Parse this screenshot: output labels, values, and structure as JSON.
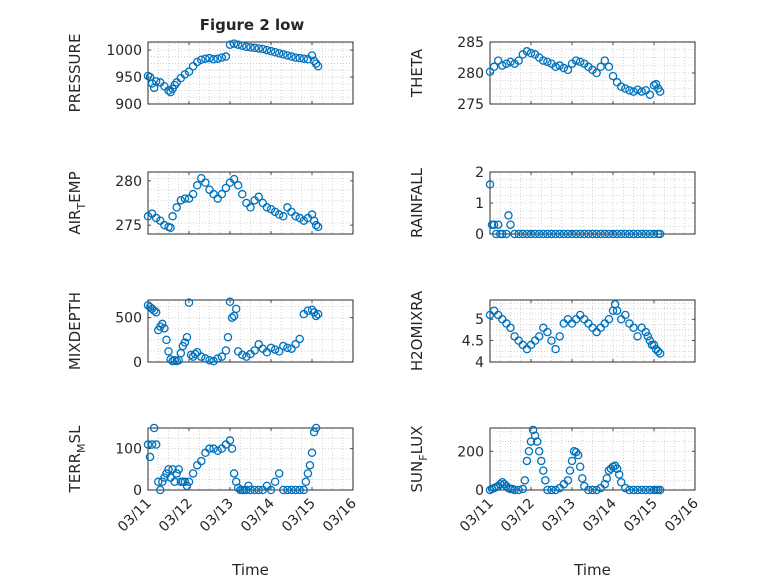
{
  "figure_title": "Figure 2 low",
  "chart_data": [
    {
      "type": "scatter",
      "title": "Figure 2 low",
      "ylabel": "PRESSURE",
      "xlabel": "",
      "ylim": [
        900,
        1015
      ],
      "yticks": [
        900,
        950,
        1000
      ],
      "xlim": [
        0,
        5
      ],
      "xticks": [
        0,
        1,
        2,
        3,
        4,
        5
      ],
      "xticklabels": [],
      "grid": true,
      "x": [
        0.0,
        0.05,
        0.1,
        0.15,
        0.2,
        0.3,
        0.4,
        0.5,
        0.55,
        0.6,
        0.65,
        0.7,
        0.8,
        0.9,
        1.0,
        1.1,
        1.2,
        1.3,
        1.4,
        1.5,
        1.6,
        1.7,
        1.8,
        1.9,
        2.0,
        2.1,
        2.2,
        2.3,
        2.4,
        2.5,
        2.6,
        2.7,
        2.8,
        2.9,
        3.0,
        3.1,
        3.2,
        3.3,
        3.4,
        3.5,
        3.6,
        3.7,
        3.8,
        3.9,
        4.0,
        4.05,
        4.1,
        4.15
      ],
      "y": [
        952,
        950,
        938,
        930,
        942,
        940,
        933,
        925,
        922,
        928,
        935,
        940,
        948,
        955,
        960,
        970,
        978,
        982,
        984,
        985,
        983,
        984,
        986,
        988,
        1010,
        1012,
        1010,
        1008,
        1006,
        1005,
        1004,
        1003,
        1002,
        1000,
        998,
        996,
        994,
        992,
        990,
        988,
        986,
        985,
        984,
        983,
        990,
        980,
        975,
        970
      ]
    },
    {
      "type": "scatter",
      "ylabel": "THETA",
      "xlabel": "",
      "ylim": [
        275,
        285
      ],
      "yticks": [
        275,
        280,
        285
      ],
      "xlim": [
        0,
        5
      ],
      "xticks": [
        0,
        1,
        2,
        3,
        4,
        5
      ],
      "xticklabels": [],
      "grid": true,
      "x": [
        0.0,
        0.1,
        0.2,
        0.3,
        0.4,
        0.5,
        0.6,
        0.7,
        0.8,
        0.9,
        1.0,
        1.1,
        1.2,
        1.3,
        1.4,
        1.5,
        1.6,
        1.7,
        1.8,
        1.9,
        2.0,
        2.1,
        2.2,
        2.3,
        2.4,
        2.5,
        2.6,
        2.7,
        2.8,
        2.9,
        3.0,
        3.1,
        3.2,
        3.3,
        3.4,
        3.5,
        3.6,
        3.7,
        3.8,
        3.9,
        4.0,
        4.05,
        4.1,
        4.15
      ],
      "y": [
        280.2,
        281.0,
        282.0,
        281.2,
        281.5,
        281.8,
        281.5,
        282.0,
        283.0,
        283.5,
        283.2,
        283.0,
        282.5,
        282.0,
        281.8,
        281.5,
        281.0,
        281.2,
        280.8,
        280.5,
        281.5,
        282.0,
        281.8,
        281.5,
        281.0,
        280.5,
        280.0,
        281.0,
        282.0,
        281.0,
        279.5,
        278.5,
        277.8,
        277.5,
        277.2,
        277.0,
        277.3,
        277.0,
        277.2,
        276.5,
        278.0,
        278.2,
        277.5,
        277.0
      ]
    },
    {
      "type": "scatter",
      "ylabel": "AIR_TEMP",
      "ylabel_main": "AIR",
      "ylabel_sub": "T",
      "ylabel_rest": "EMP",
      "xlabel": "",
      "ylim": [
        274,
        281
      ],
      "yticks": [
        275,
        280
      ],
      "xlim": [
        0,
        5
      ],
      "xticks": [
        0,
        1,
        2,
        3,
        4,
        5
      ],
      "xticklabels": [],
      "grid": true,
      "x": [
        0.0,
        0.1,
        0.2,
        0.3,
        0.4,
        0.5,
        0.55,
        0.6,
        0.7,
        0.8,
        0.9,
        1.0,
        1.1,
        1.2,
        1.3,
        1.4,
        1.5,
        1.6,
        1.7,
        1.8,
        1.9,
        2.0,
        2.1,
        2.2,
        2.3,
        2.4,
        2.5,
        2.6,
        2.7,
        2.8,
        2.9,
        3.0,
        3.1,
        3.2,
        3.3,
        3.4,
        3.5,
        3.6,
        3.7,
        3.8,
        3.9,
        4.0,
        4.05,
        4.1,
        4.15
      ],
      "y": [
        276.0,
        276.3,
        275.8,
        275.5,
        275.0,
        274.8,
        274.7,
        276.0,
        277.0,
        277.8,
        278.0,
        278.0,
        278.5,
        279.5,
        280.3,
        279.8,
        279.0,
        278.5,
        278.0,
        278.5,
        279.2,
        279.8,
        280.2,
        279.5,
        278.5,
        277.5,
        277.0,
        277.8,
        278.2,
        277.5,
        277.0,
        276.8,
        276.5,
        276.2,
        276.0,
        277.0,
        276.5,
        276.0,
        275.8,
        275.5,
        275.8,
        276.2,
        275.5,
        275.0,
        274.8
      ]
    },
    {
      "type": "scatter",
      "ylabel": "RAINFALL",
      "xlabel": "",
      "ylim": [
        0,
        2
      ],
      "yticks": [
        0,
        1,
        2
      ],
      "xlim": [
        0,
        5
      ],
      "xticks": [
        0,
        1,
        2,
        3,
        4,
        5
      ],
      "xticklabels": [],
      "grid": true,
      "x": [
        0.0,
        0.05,
        0.1,
        0.15,
        0.2,
        0.25,
        0.3,
        0.4,
        0.45,
        0.5,
        0.6,
        0.7,
        0.8,
        0.9,
        1.0,
        1.1,
        1.2,
        1.3,
        1.4,
        1.5,
        1.6,
        1.7,
        1.8,
        1.9,
        2.0,
        2.1,
        2.2,
        2.3,
        2.4,
        2.5,
        2.6,
        2.7,
        2.8,
        2.9,
        3.0,
        3.1,
        3.2,
        3.3,
        3.4,
        3.5,
        3.6,
        3.7,
        3.8,
        3.9,
        4.0,
        4.1,
        4.15
      ],
      "y": [
        1.6,
        0.3,
        0.3,
        0.0,
        0.3,
        0.0,
        0.0,
        0.0,
        0.6,
        0.3,
        0.0,
        0.0,
        0.0,
        0.0,
        0.0,
        0.0,
        0.0,
        0.0,
        0.0,
        0.0,
        0.0,
        0.0,
        0.0,
        0.0,
        0.0,
        0.0,
        0.0,
        0.0,
        0.0,
        0.0,
        0.0,
        0.0,
        0.0,
        0.0,
        0.0,
        0.0,
        0.0,
        0.0,
        0.0,
        0.0,
        0.0,
        0.0,
        0.0,
        0.0,
        0.0,
        0.0,
        0.0
      ]
    },
    {
      "type": "scatter",
      "ylabel": "MIXDEPTH",
      "xlabel": "",
      "ylim": [
        0,
        700
      ],
      "yticks": [
        0,
        500
      ],
      "xlim": [
        0,
        5
      ],
      "xticks": [
        0,
        1,
        2,
        3,
        4,
        5
      ],
      "xticklabels": [],
      "grid": true,
      "x": [
        0.0,
        0.05,
        0.1,
        0.15,
        0.2,
        0.25,
        0.3,
        0.35,
        0.4,
        0.45,
        0.5,
        0.55,
        0.6,
        0.65,
        0.7,
        0.75,
        0.8,
        0.85,
        0.9,
        0.95,
        1.0,
        1.05,
        1.1,
        1.15,
        1.2,
        1.3,
        1.4,
        1.5,
        1.6,
        1.7,
        1.8,
        1.9,
        1.95,
        2.0,
        2.05,
        2.1,
        2.15,
        2.2,
        2.3,
        2.4,
        2.5,
        2.6,
        2.7,
        2.8,
        2.9,
        3.0,
        3.1,
        3.2,
        3.3,
        3.4,
        3.5,
        3.6,
        3.7,
        3.8,
        3.9,
        4.0,
        4.05,
        4.1,
        4.15
      ],
      "y": [
        640,
        620,
        600,
        580,
        560,
        360,
        400,
        430,
        380,
        250,
        120,
        30,
        10,
        20,
        10,
        20,
        100,
        180,
        220,
        280,
        670,
        80,
        60,
        90,
        110,
        60,
        40,
        20,
        10,
        40,
        60,
        130,
        280,
        680,
        500,
        520,
        600,
        120,
        80,
        60,
        90,
        130,
        200,
        150,
        110,
        160,
        140,
        120,
        180,
        160,
        150,
        200,
        260,
        540,
        580,
        590,
        560,
        520,
        540
      ]
    },
    {
      "type": "scatter",
      "ylabel": "H2OMIXRA",
      "xlabel": "",
      "ylim": [
        4,
        5.45
      ],
      "yticks": [
        4,
        4.5,
        5
      ],
      "xlim": [
        0,
        5
      ],
      "xticks": [
        0,
        1,
        2,
        3,
        4,
        5
      ],
      "xticklabels": [],
      "grid": true,
      "x": [
        0.0,
        0.1,
        0.2,
        0.3,
        0.4,
        0.5,
        0.6,
        0.7,
        0.8,
        0.9,
        1.0,
        1.1,
        1.2,
        1.3,
        1.4,
        1.5,
        1.6,
        1.7,
        1.8,
        1.9,
        2.0,
        2.1,
        2.2,
        2.3,
        2.4,
        2.5,
        2.6,
        2.7,
        2.8,
        2.9,
        3.0,
        3.05,
        3.1,
        3.2,
        3.3,
        3.4,
        3.5,
        3.6,
        3.7,
        3.8,
        3.85,
        3.9,
        3.95,
        4.0,
        4.05,
        4.1,
        4.15
      ],
      "y": [
        5.1,
        5.2,
        5.1,
        5.0,
        4.9,
        4.8,
        4.6,
        4.5,
        4.4,
        4.3,
        4.4,
        4.5,
        4.6,
        4.8,
        4.7,
        4.5,
        4.3,
        4.6,
        4.9,
        5.0,
        4.9,
        5.0,
        5.1,
        5.0,
        4.9,
        4.8,
        4.7,
        4.8,
        4.9,
        5.0,
        5.2,
        5.35,
        5.2,
        5.0,
        5.1,
        4.9,
        4.8,
        4.6,
        4.8,
        4.7,
        4.6,
        4.5,
        4.4,
        4.4,
        4.3,
        4.25,
        4.2
      ]
    },
    {
      "type": "scatter",
      "ylabel": "TERR_MSL",
      "ylabel_main": "TERR",
      "ylabel_sub": "M",
      "ylabel_rest": "SL",
      "xlabel": "Time",
      "ylim": [
        0,
        150
      ],
      "yticks": [
        0,
        100
      ],
      "xlim": [
        0,
        5
      ],
      "xticks": [
        0,
        1,
        2,
        3,
        4,
        5
      ],
      "xticklabels": [
        "03/11",
        "03/12",
        "03/13",
        "03/14",
        "03/15",
        "03/16"
      ],
      "grid": true,
      "x": [
        0.0,
        0.05,
        0.1,
        0.15,
        0.2,
        0.25,
        0.3,
        0.35,
        0.4,
        0.45,
        0.5,
        0.55,
        0.6,
        0.65,
        0.7,
        0.75,
        0.8,
        0.85,
        0.9,
        0.95,
        1.0,
        1.1,
        1.2,
        1.3,
        1.4,
        1.5,
        1.6,
        1.7,
        1.8,
        1.9,
        2.0,
        2.05,
        2.1,
        2.15,
        2.2,
        2.25,
        2.3,
        2.35,
        2.4,
        2.45,
        2.5,
        2.6,
        2.7,
        2.8,
        2.9,
        3.0,
        3.1,
        3.2,
        3.3,
        3.4,
        3.5,
        3.6,
        3.7,
        3.8,
        3.85,
        3.9,
        3.95,
        4.0,
        4.05,
        4.1
      ],
      "y": [
        110,
        80,
        110,
        150,
        110,
        20,
        0,
        20,
        30,
        40,
        50,
        30,
        50,
        20,
        40,
        50,
        20,
        20,
        20,
        10,
        20,
        40,
        60,
        70,
        90,
        100,
        100,
        95,
        100,
        110,
        120,
        100,
        40,
        20,
        5,
        0,
        0,
        0,
        0,
        10,
        0,
        0,
        0,
        0,
        10,
        0,
        20,
        40,
        0,
        0,
        0,
        0,
        0,
        0,
        20,
        40,
        60,
        90,
        140,
        150
      ]
    },
    {
      "type": "scatter",
      "ylabel": "SUN_FLUX",
      "ylabel_main": "SUN",
      "ylabel_sub": "F",
      "ylabel_rest": "LUX",
      "xlabel": "Time",
      "ylim": [
        0,
        320
      ],
      "yticks": [
        0,
        200
      ],
      "xlim": [
        0,
        5
      ],
      "xticks": [
        0,
        1,
        2,
        3,
        4,
        5
      ],
      "xticklabels": [
        "03/11",
        "03/12",
        "03/13",
        "03/14",
        "03/15",
        "03/16"
      ],
      "grid": true,
      "x": [
        0.0,
        0.05,
        0.1,
        0.15,
        0.2,
        0.25,
        0.3,
        0.35,
        0.4,
        0.45,
        0.5,
        0.55,
        0.6,
        0.7,
        0.8,
        0.85,
        0.9,
        0.95,
        1.0,
        1.05,
        1.1,
        1.15,
        1.2,
        1.25,
        1.3,
        1.35,
        1.4,
        1.5,
        1.6,
        1.7,
        1.8,
        1.9,
        1.95,
        2.0,
        2.05,
        2.1,
        2.15,
        2.2,
        2.25,
        2.3,
        2.4,
        2.5,
        2.6,
        2.7,
        2.8,
        2.85,
        2.9,
        2.95,
        3.0,
        3.05,
        3.1,
        3.15,
        3.2,
        3.3,
        3.4,
        3.5,
        3.6,
        3.7,
        3.8,
        3.9,
        4.0,
        4.05,
        4.1,
        4.15
      ],
      "y": [
        0,
        5,
        10,
        15,
        20,
        30,
        40,
        30,
        20,
        10,
        5,
        5,
        0,
        0,
        5,
        50,
        150,
        200,
        250,
        310,
        280,
        250,
        200,
        150,
        100,
        50,
        0,
        0,
        0,
        10,
        30,
        50,
        100,
        150,
        200,
        195,
        180,
        120,
        60,
        20,
        0,
        0,
        0,
        10,
        30,
        60,
        100,
        110,
        120,
        125,
        110,
        80,
        40,
        10,
        0,
        0,
        0,
        0,
        0,
        0,
        0,
        0,
        0,
        0
      ]
    }
  ]
}
